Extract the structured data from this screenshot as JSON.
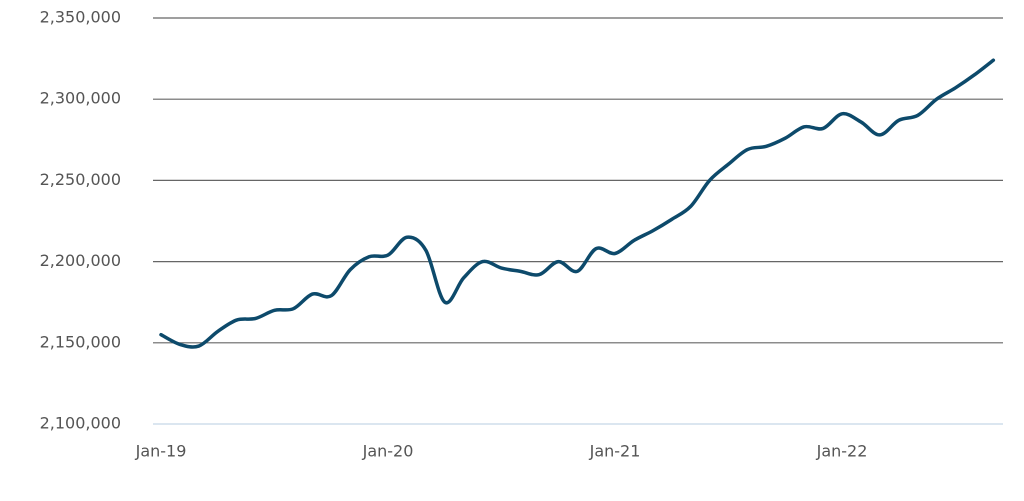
{
  "chart_data": {
    "type": "line",
    "categories": [
      "Jan-19",
      null,
      null,
      null,
      null,
      null,
      null,
      null,
      null,
      null,
      null,
      null,
      "Jan-20",
      null,
      null,
      null,
      null,
      null,
      null,
      null,
      null,
      null,
      null,
      null,
      "Jan-21",
      null,
      null,
      null,
      null,
      null,
      null,
      null,
      null,
      null,
      null,
      null,
      "Jan-22",
      null,
      null,
      null,
      null,
      null,
      null,
      null,
      null
    ],
    "series": [
      {
        "color": "#0d4a6b",
        "values": [
          2155000,
          2149000,
          2148000,
          2157000,
          2164000,
          2165000,
          2170000,
          2171000,
          2180000,
          2179000,
          2195000,
          2203000,
          2204000,
          2215000,
          2207000,
          2175000,
          2190000,
          2200000,
          2196000,
          2194000,
          2192000,
          2200000,
          2194000,
          2208000,
          2205000,
          2213000,
          2219000,
          2226000,
          2234000,
          2250000,
          2260000,
          2269000,
          2271000,
          2276000,
          2283000,
          2282000,
          2291000,
          2286000,
          2278000,
          2287000,
          2290000,
          2300000,
          2307000,
          2315000,
          2324000
        ]
      }
    ],
    "ylim": [
      2100000,
      2350000
    ],
    "yticks": [
      {
        "value": 2100000,
        "label": "2,100,000"
      },
      {
        "value": 2150000,
        "label": "2,150,000"
      },
      {
        "value": 2200000,
        "label": "2,200,000"
      },
      {
        "value": 2250000,
        "label": "2,250,000"
      },
      {
        "value": 2300000,
        "label": "2,300,000"
      },
      {
        "value": 2350000,
        "label": "2,350,000"
      }
    ],
    "grid": true
  }
}
